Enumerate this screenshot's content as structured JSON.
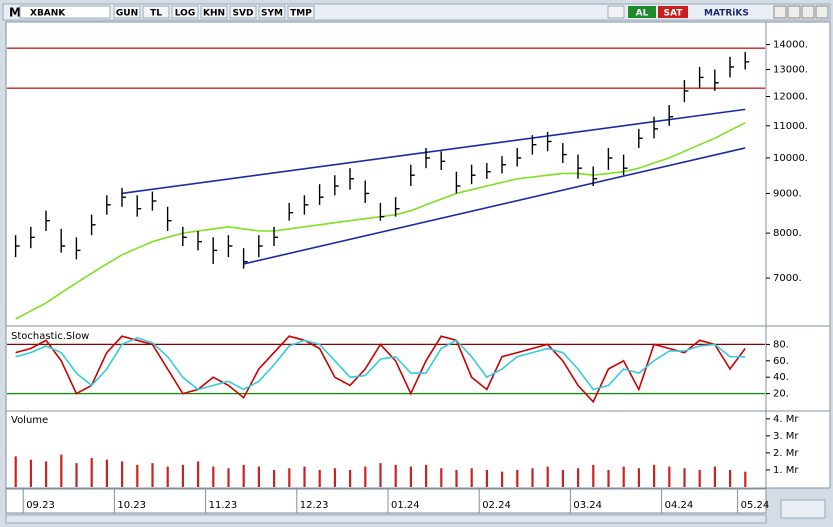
{
  "toolbar": {
    "logo": "M",
    "symbol": "XBANK",
    "buttons": [
      "GUN",
      "TL",
      "LOG",
      "KHN",
      "SVD",
      "SYM",
      "TMP"
    ],
    "buy": "AL",
    "sell": "SAT",
    "brand": "MATRiKS"
  },
  "chart_data": [
    {
      "type": "ohlc",
      "log_scale": true,
      "color": "#000000",
      "categories": [
        null,
        "09.23",
        null,
        null,
        null,
        null,
        null,
        "10.23",
        null,
        null,
        null,
        null,
        null,
        "11.23",
        null,
        null,
        null,
        null,
        null,
        "12.23",
        null,
        null,
        null,
        null,
        null,
        "01.24",
        null,
        null,
        null,
        null,
        null,
        "02.24",
        null,
        null,
        null,
        null,
        null,
        "03.24",
        null,
        null,
        null,
        null,
        null,
        "04.24",
        null,
        null,
        null,
        null,
        "05.24"
      ],
      "high": [
        7950,
        8150,
        8550,
        8100,
        7900,
        8450,
        8950,
        9150,
        8950,
        9050,
        8650,
        8150,
        8050,
        7900,
        7950,
        7650,
        7950,
        8150,
        8750,
        8950,
        9250,
        9500,
        9700,
        9350,
        8750,
        8900,
        9800,
        10300,
        10200,
        9600,
        9800,
        9850,
        10050,
        10300,
        10700,
        10800,
        10450,
        10100,
        9750,
        10300,
        10100,
        10900,
        11300,
        11700,
        12600,
        13100,
        13000,
        13500,
        13700
      ],
      "low": [
        7450,
        7650,
        8050,
        7550,
        7400,
        7950,
        8450,
        8650,
        8400,
        8550,
        8050,
        7700,
        7600,
        7300,
        7450,
        7200,
        7450,
        7700,
        8300,
        8450,
        8700,
        8950,
        9100,
        8750,
        8300,
        8400,
        9200,
        9700,
        9650,
        9000,
        9250,
        9400,
        9550,
        9750,
        10100,
        10200,
        9850,
        9400,
        9200,
        9650,
        9500,
        10300,
        10600,
        11000,
        11800,
        12300,
        12200,
        12700,
        13000
      ],
      "close": [
        7700,
        7900,
        8300,
        7700,
        7600,
        8200,
        8700,
        8900,
        8600,
        8800,
        8300,
        7900,
        7800,
        7600,
        7700,
        7350,
        7700,
        7900,
        8500,
        8700,
        8900,
        9200,
        9400,
        9000,
        8400,
        8600,
        9500,
        10000,
        9900,
        9200,
        9500,
        9600,
        9800,
        10000,
        10400,
        10500,
        10100,
        9700,
        9400,
        10000,
        9700,
        10600,
        10900,
        11300,
        12200,
        12700,
        12500,
        13100,
        13300
      ],
      "overlays": [
        {
          "color": "#7fe020",
          "values": [
            6200,
            6350,
            6500,
            6700,
            6900,
            7100,
            7300,
            7500,
            7650,
            7800,
            7900,
            8000,
            8050,
            8100,
            8150,
            8100,
            8050,
            8050,
            8100,
            8150,
            8200,
            8250,
            8300,
            8350,
            8400,
            8450,
            8550,
            8700,
            8850,
            9000,
            9100,
            9200,
            9300,
            9400,
            9450,
            9500,
            9550,
            9550,
            9500,
            9550,
            9600,
            9700,
            9850,
            10000,
            10200,
            10400,
            10600,
            10850,
            11100
          ]
        }
      ],
      "hlines": [
        {
          "value": 13850,
          "color": "#cc2222"
        },
        {
          "value": 12300,
          "color": "#cc2222"
        }
      ],
      "trendlines": [
        {
          "from": [
            7,
            9000
          ],
          "to": [
            48,
            11550
          ],
          "color": "#1a2aa8"
        },
        {
          "from": [
            15,
            7300
          ],
          "to": [
            48,
            10300
          ],
          "color": "#1a2aa8"
        }
      ],
      "ylim": [
        6090,
        14970
      ],
      "yticks": [
        {
          "value": 7000,
          "label": "7000."
        },
        {
          "value": 8000,
          "label": "8000."
        },
        {
          "value": 9000,
          "label": "9000."
        },
        {
          "value": 10000,
          "label": "10000."
        },
        {
          "value": 11000,
          "label": "11000."
        },
        {
          "value": 12000,
          "label": "12000."
        },
        {
          "value": 13000,
          "label": "13000."
        },
        {
          "value": 14000,
          "label": "14000."
        }
      ]
    },
    {
      "type": "line",
      "title": "Stochastic.Slow",
      "series": [
        {
          "color": "#cc0000",
          "values": [
            70,
            75,
            85,
            60,
            20,
            30,
            70,
            90,
            85,
            80,
            50,
            20,
            25,
            40,
            30,
            15,
            50,
            70,
            90,
            85,
            75,
            40,
            30,
            50,
            80,
            60,
            20,
            60,
            90,
            85,
            40,
            25,
            65,
            70,
            75,
            80,
            60,
            30,
            10,
            50,
            60,
            25,
            80,
            75,
            70,
            85,
            80,
            50,
            75
          ]
        },
        {
          "color": "#33ccdd",
          "values": [
            65,
            70,
            78,
            70,
            45,
            30,
            50,
            80,
            88,
            82,
            65,
            40,
            25,
            30,
            35,
            25,
            35,
            55,
            78,
            85,
            80,
            60,
            40,
            42,
            62,
            65,
            45,
            45,
            75,
            85,
            65,
            40,
            50,
            65,
            70,
            75,
            70,
            50,
            25,
            30,
            50,
            45,
            60,
            72,
            72,
            78,
            80,
            65,
            65
          ]
        }
      ],
      "hlines": [
        {
          "value": 80,
          "color": "#8b0000"
        },
        {
          "value": 20,
          "color": "#009900"
        }
      ],
      "ylim": [
        0,
        100
      ],
      "yticks": [
        {
          "value": 20,
          "label": "20."
        },
        {
          "value": 40,
          "label": "40."
        },
        {
          "value": 60,
          "label": "60."
        },
        {
          "value": 80,
          "label": "80."
        }
      ]
    },
    {
      "type": "bar",
      "title": "Volume",
      "color": "#cc2222",
      "values": [
        1.8,
        1.6,
        1.5,
        1.9,
        1.4,
        1.7,
        1.6,
        1.5,
        1.3,
        1.4,
        1.2,
        1.3,
        1.5,
        1.2,
        1.1,
        1.3,
        1.2,
        1.0,
        1.1,
        1.2,
        1.0,
        1.1,
        1.0,
        1.2,
        1.4,
        1.3,
        1.2,
        1.3,
        1.1,
        1.0,
        1.1,
        1.0,
        0.9,
        1.0,
        1.1,
        1.2,
        1.0,
        1.1,
        1.3,
        1.0,
        1.2,
        1.1,
        1.3,
        1.2,
        1.1,
        1.0,
        1.2,
        1.0,
        0.9
      ],
      "ylim": [
        0,
        4.4
      ],
      "yticks": [
        {
          "value": 1,
          "label": "1. Mr"
        },
        {
          "value": 2,
          "label": "2. Mr"
        },
        {
          "value": 3,
          "label": "3. Mr"
        },
        {
          "value": 4,
          "label": "4. Mr"
        }
      ]
    }
  ]
}
